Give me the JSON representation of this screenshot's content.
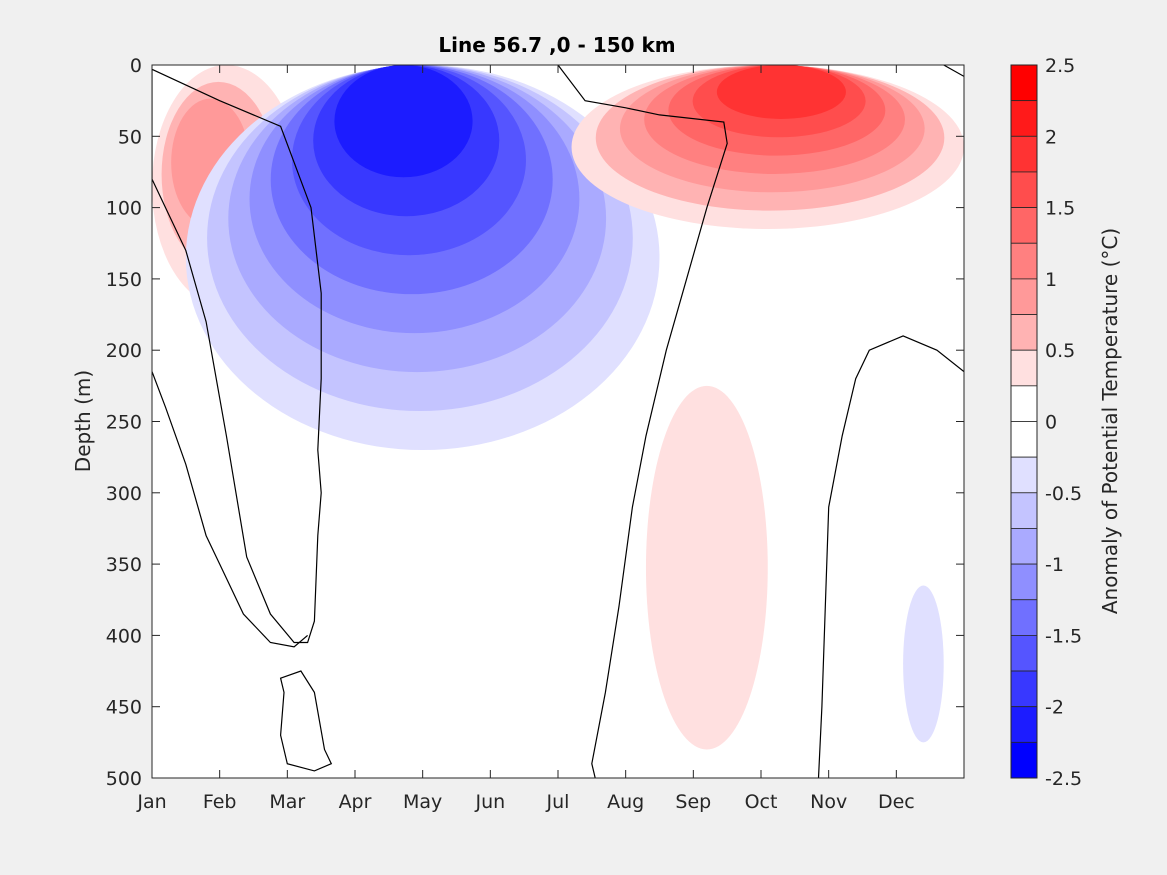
{
  "chart_data": {
    "type": "heatmap",
    "subtype": "filled-contour",
    "title": "Line 56.7 ,0 - 150 km",
    "xlabel": "",
    "ylabel": "Depth (m)",
    "x_ticks": [
      "Jan",
      "Feb",
      "Mar",
      "Apr",
      "May",
      "Jun",
      "Jul",
      "Aug",
      "Sep",
      "Oct",
      "Nov",
      "Dec"
    ],
    "xlim_months": [
      0,
      12
    ],
    "y_ticks": [
      0,
      50,
      100,
      150,
      200,
      250,
      300,
      350,
      400,
      450,
      500
    ],
    "ylim": [
      0,
      500
    ],
    "y_reversed": true,
    "grid": false,
    "colorbar": {
      "label": "Anomaly of Potential Temperature (°C)",
      "placement": "right",
      "limits": [
        -2.5,
        2.5
      ],
      "step": 0.25,
      "tick_values": [
        2.5,
        2,
        1.5,
        1,
        0.5,
        0,
        -0.5,
        -1,
        -1.5,
        -2,
        -2.5
      ],
      "tick_labels": [
        "2.5",
        "2",
        "1.5",
        "1",
        "0.5",
        "0",
        "-0.5",
        "-1",
        "-1.5",
        "-2",
        "-2.5"
      ],
      "bins_top_to_bottom": [
        {
          "range": [
            2.25,
            2.5
          ],
          "color": "#ff0000"
        },
        {
          "range": [
            2.0,
            2.25
          ],
          "color": "#ff1a1a"
        },
        {
          "range": [
            1.75,
            2.0
          ],
          "color": "#ff3333"
        },
        {
          "range": [
            1.5,
            1.75
          ],
          "color": "#ff4d4d"
        },
        {
          "range": [
            1.25,
            1.5
          ],
          "color": "#ff6666"
        },
        {
          "range": [
            1.0,
            1.25
          ],
          "color": "#ff8080"
        },
        {
          "range": [
            0.75,
            1.0
          ],
          "color": "#ff9999"
        },
        {
          "range": [
            0.5,
            0.75
          ],
          "color": "#ffb3b3"
        },
        {
          "range": [
            0.25,
            0.5
          ],
          "color": "#ffe0e0"
        },
        {
          "range": [
            0.0,
            0.25
          ],
          "color": "#ffffff"
        },
        {
          "range": [
            -0.25,
            0.0
          ],
          "color": "#ffffff"
        },
        {
          "range": [
            -0.5,
            -0.25
          ],
          "color": "#e0e0ff"
        },
        {
          "range": [
            -0.75,
            -0.5
          ],
          "color": "#c4c4ff"
        },
        {
          "range": [
            -1.0,
            -0.75
          ],
          "color": "#aaaaff"
        },
        {
          "range": [
            -1.25,
            -1.0
          ],
          "color": "#8f8fff"
        },
        {
          "range": [
            -1.5,
            -1.25
          ],
          "color": "#7070ff"
        },
        {
          "range": [
            -1.75,
            -1.5
          ],
          "color": "#5555ff"
        },
        {
          "range": [
            -2.0,
            -1.75
          ],
          "color": "#3838ff"
        },
        {
          "range": [
            -2.25,
            -2.0
          ],
          "color": "#1c1cff"
        },
        {
          "range": [
            -2.5,
            -2.25
          ],
          "color": "#0000ff"
        }
      ]
    },
    "features": [
      {
        "name": "winter-warm-anomaly",
        "sign": "positive",
        "month_range": [
          0,
          2.2
        ],
        "depth_range": [
          0,
          170
        ],
        "peak": 0.9,
        "peak_month": 0.6,
        "peak_depth": 50
      },
      {
        "name": "spring-cold-anomaly",
        "sign": "negative",
        "month_range": [
          0.5,
          7.5
        ],
        "depth_range": [
          0,
          270
        ],
        "peak": -2.1,
        "peak_month": 3.6,
        "peak_depth": 0
      },
      {
        "name": "autumn-warm-anomaly",
        "sign": "positive",
        "month_range": [
          6.2,
          12
        ],
        "depth_range": [
          0,
          115
        ],
        "peak": 1.9,
        "peak_month": 9.4,
        "peak_depth": 0
      },
      {
        "name": "deep-warm-anomaly",
        "sign": "positive",
        "month_range": [
          7.3,
          9.1
        ],
        "depth_range": [
          225,
          480
        ],
        "peak": 0.4
      },
      {
        "name": "deep-cold-spots-dec",
        "sign": "negative",
        "month_range": [
          11.1,
          11.7
        ],
        "depth_range": [
          365,
          475
        ],
        "peak": -0.35
      }
    ],
    "zero_contours": [
      {
        "name": "zero-contour-jan-mar",
        "points": [
          [
            0,
            3
          ],
          [
            1.0,
            25
          ],
          [
            1.9,
            43
          ],
          [
            2.35,
            100
          ],
          [
            2.5,
            160
          ],
          [
            2.5,
            220
          ],
          [
            2.45,
            270
          ],
          [
            2.5,
            300
          ],
          [
            2.45,
            330
          ],
          [
            2.4,
            390
          ],
          [
            2.3,
            405
          ],
          [
            2.1,
            405
          ],
          [
            1.75,
            385
          ],
          [
            1.4,
            345
          ],
          [
            1.1,
            260
          ],
          [
            0.8,
            180
          ],
          [
            0.5,
            130
          ],
          [
            0.2,
            100
          ],
          [
            0.0,
            80
          ]
        ]
      },
      {
        "name": "zero-contour-jan-deep",
        "points": [
          [
            0,
            215
          ],
          [
            0.2,
            240
          ],
          [
            0.5,
            280
          ],
          [
            0.8,
            330
          ],
          [
            1.0,
            350
          ],
          [
            1.35,
            385
          ],
          [
            1.75,
            405
          ],
          [
            2.1,
            408
          ],
          [
            2.3,
            400
          ]
        ]
      },
      {
        "name": "zero-contour-mar-loop",
        "points": [
          [
            1.9,
            430
          ],
          [
            2.2,
            425
          ],
          [
            2.4,
            440
          ],
          [
            2.55,
            480
          ],
          [
            2.65,
            490
          ],
          [
            2.4,
            495
          ],
          [
            2.0,
            490
          ],
          [
            1.9,
            470
          ],
          [
            1.95,
            440
          ]
        ]
      },
      {
        "name": "zero-contour-jun-jul",
        "points": [
          [
            6.0,
            0
          ],
          [
            6.4,
            25
          ],
          [
            7.0,
            30
          ],
          [
            7.5,
            35
          ],
          [
            8.45,
            40
          ],
          [
            8.5,
            55
          ],
          [
            8.2,
            100
          ],
          [
            7.9,
            150
          ],
          [
            7.6,
            200
          ],
          [
            7.3,
            260
          ],
          [
            7.1,
            310
          ],
          [
            6.9,
            380
          ],
          [
            6.7,
            440
          ],
          [
            6.5,
            490
          ],
          [
            6.55,
            500
          ]
        ]
      },
      {
        "name": "zero-contour-nov-dec",
        "points": [
          [
            9.85,
            500
          ],
          [
            9.9,
            450
          ],
          [
            9.95,
            380
          ],
          [
            10.0,
            310
          ],
          [
            10.2,
            260
          ],
          [
            10.4,
            220
          ],
          [
            10.6,
            200
          ],
          [
            11.1,
            190
          ],
          [
            11.6,
            200
          ],
          [
            12,
            215
          ]
        ]
      },
      {
        "name": "zero-contour-dec-top",
        "points": [
          [
            11.7,
            0
          ],
          [
            12,
            8
          ]
        ]
      }
    ]
  }
}
